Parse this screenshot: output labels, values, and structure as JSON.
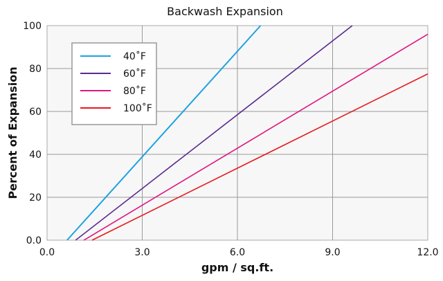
{
  "chart_data": {
    "type": "line",
    "title": "Backwash Expansion",
    "xlabel": "gpm / sq.ft.",
    "ylabel": "Percent of Expansion",
    "xlim": [
      0,
      12
    ],
    "ylim": [
      0,
      100
    ],
    "xticks": [
      "0.0",
      "3.0",
      "6.0",
      "9.0",
      "12.0"
    ],
    "xtick_values": [
      0,
      3,
      6,
      9,
      12
    ],
    "yticks": [
      "0.0",
      "20",
      "40",
      "60",
      "80",
      "100"
    ],
    "ytick_values": [
      0,
      20,
      40,
      60,
      80,
      100
    ],
    "grid": true,
    "legend_position": "top-left",
    "series": [
      {
        "name": "40˚F",
        "color": "#1aa3e0",
        "x": [
          0.63,
          6.73
        ],
        "y": [
          0,
          100
        ]
      },
      {
        "name": "60˚F",
        "color": "#5c2a8e",
        "x": [
          0.9,
          9.62
        ],
        "y": [
          0,
          100
        ]
      },
      {
        "name": "80˚F",
        "color": "#e0147f",
        "x": [
          1.16,
          12
        ],
        "y": [
          0,
          96
        ]
      },
      {
        "name": "100˚F",
        "color": "#e8191e",
        "x": [
          1.42,
          12
        ],
        "y": [
          0,
          77.5
        ]
      }
    ]
  }
}
